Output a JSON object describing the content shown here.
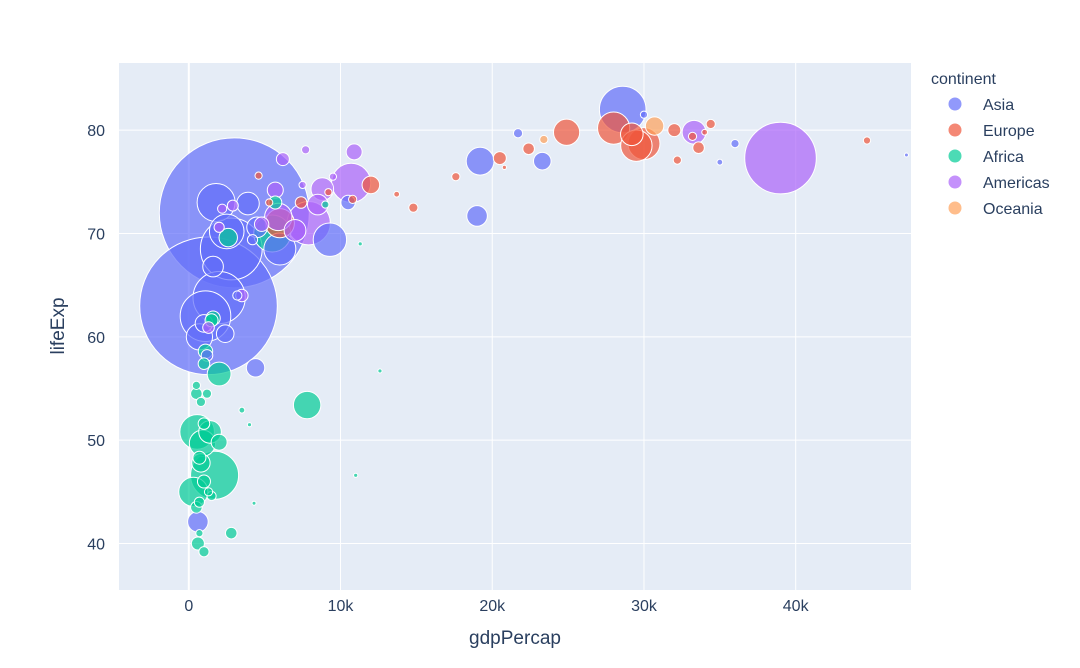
{
  "chart_data": {
    "type": "scatter",
    "subtype": "bubble",
    "title": "",
    "xlabel": "gdpPercap",
    "ylabel": "lifeExp",
    "xlim": [
      -4600,
      47600
    ],
    "ylim": [
      35.5,
      86.5
    ],
    "xticks": [
      0,
      10000,
      20000,
      30000,
      40000
    ],
    "xtick_labels": [
      "0",
      "10k",
      "20k",
      "30k",
      "40k"
    ],
    "yticks": [
      40,
      50,
      60,
      70,
      80
    ],
    "ytick_labels": [
      "40",
      "50",
      "60",
      "70",
      "80"
    ],
    "grid": true,
    "plot_bgcolor": "#e5ecf6",
    "legend": {
      "title": "continent",
      "placement": "right",
      "entries": [
        "Asia",
        "Europe",
        "Africa",
        "Americas",
        "Oceania"
      ]
    },
    "colors": {
      "Asia": "#636efa",
      "Europe": "#ef553b",
      "Africa": "#00cc96",
      "Americas": "#ab63fa",
      "Oceania": "#ffa15a"
    },
    "size_unit": "population (millions)",
    "series": [
      {
        "name": "Asia",
        "points": [
          {
            "x": 3000,
            "y": 72.0,
            "size": 1318
          },
          {
            "x": 1300,
            "y": 63.0,
            "size": 1110
          },
          {
            "x": 2800,
            "y": 68.5,
            "size": 224
          },
          {
            "x": 28600,
            "y": 82.0,
            "size": 127
          },
          {
            "x": 1800,
            "y": 73.0,
            "size": 85
          },
          {
            "x": 2000,
            "y": 63.8,
            "size": 160
          },
          {
            "x": 1100,
            "y": 62.0,
            "size": 150
          },
          {
            "x": 2500,
            "y": 70.2,
            "size": 70
          },
          {
            "x": 9300,
            "y": 69.4,
            "size": 65
          },
          {
            "x": 6000,
            "y": 68.5,
            "size": 60
          },
          {
            "x": 19200,
            "y": 77.0,
            "size": 45
          },
          {
            "x": 700,
            "y": 60.0,
            "size": 40
          },
          {
            "x": 3900,
            "y": 72.9,
            "size": 30
          },
          {
            "x": 4500,
            "y": 70.6,
            "size": 25
          },
          {
            "x": 1600,
            "y": 66.8,
            "size": 25
          },
          {
            "x": 4400,
            "y": 57.0,
            "size": 20
          },
          {
            "x": 19000,
            "y": 71.7,
            "size": 25
          },
          {
            "x": 23300,
            "y": 77.0,
            "size": 18
          },
          {
            "x": 2400,
            "y": 60.3,
            "size": 18
          },
          {
            "x": 1000,
            "y": 61.3,
            "size": 18
          },
          {
            "x": 600,
            "y": 42.1,
            "size": 25
          },
          {
            "x": 10500,
            "y": 73.0,
            "size": 12
          },
          {
            "x": 1200,
            "y": 58.2,
            "size": 8
          },
          {
            "x": 21700,
            "y": 79.7,
            "size": 5
          },
          {
            "x": 36000,
            "y": 78.7,
            "size": 4
          },
          {
            "x": 30000,
            "y": 81.5,
            "size": 3
          },
          {
            "x": 35000,
            "y": 76.9,
            "size": 2
          },
          {
            "x": 47300,
            "y": 77.6,
            "size": 0.7
          },
          {
            "x": 4200,
            "y": 69.4,
            "size": 6
          },
          {
            "x": 3200,
            "y": 64.0,
            "size": 5
          }
        ]
      },
      {
        "name": "Europe",
        "points": [
          {
            "x": 28000,
            "y": 80.2,
            "size": 61
          },
          {
            "x": 30000,
            "y": 78.7,
            "size": 60
          },
          {
            "x": 29500,
            "y": 78.5,
            "size": 58
          },
          {
            "x": 24900,
            "y": 79.8,
            "size": 40
          },
          {
            "x": 29200,
            "y": 79.6,
            "size": 30
          },
          {
            "x": 6000,
            "y": 71.0,
            "size": 50
          },
          {
            "x": 12000,
            "y": 74.7,
            "size": 18
          },
          {
            "x": 32000,
            "y": 80.0,
            "size": 10
          },
          {
            "x": 14800,
            "y": 72.5,
            "size": 5
          },
          {
            "x": 20500,
            "y": 77.3,
            "size": 10
          },
          {
            "x": 22400,
            "y": 78.2,
            "size": 8
          },
          {
            "x": 33600,
            "y": 78.3,
            "size": 8
          },
          {
            "x": 34400,
            "y": 80.6,
            "size": 5
          },
          {
            "x": 7400,
            "y": 73.0,
            "size": 8
          },
          {
            "x": 9200,
            "y": 74.0,
            "size": 3
          },
          {
            "x": 17600,
            "y": 75.5,
            "size": 4
          },
          {
            "x": 10800,
            "y": 73.3,
            "size": 4
          },
          {
            "x": 13700,
            "y": 73.8,
            "size": 2
          },
          {
            "x": 33200,
            "y": 79.4,
            "size": 4
          },
          {
            "x": 32200,
            "y": 77.1,
            "size": 4
          },
          {
            "x": 44700,
            "y": 79.0,
            "size": 3
          },
          {
            "x": 34000,
            "y": 79.8,
            "size": 2
          },
          {
            "x": 5300,
            "y": 73.0,
            "size": 3
          },
          {
            "x": 4600,
            "y": 75.6,
            "size": 3
          },
          {
            "x": 20800,
            "y": 76.4,
            "size": 1
          }
        ]
      },
      {
        "name": "Africa",
        "points": [
          {
            "x": 1700,
            "y": 46.6,
            "size": 135
          },
          {
            "x": 2600,
            "y": 69.6,
            "size": 20
          },
          {
            "x": 5500,
            "y": 70.0,
            "size": 80
          },
          {
            "x": 7800,
            "y": 53.4,
            "size": 44
          },
          {
            "x": 2000,
            "y": 56.4,
            "size": 33
          },
          {
            "x": 300,
            "y": 45.0,
            "size": 50
          },
          {
            "x": 550,
            "y": 50.8,
            "size": 70
          },
          {
            "x": 900,
            "y": 49.7,
            "size": 40
          },
          {
            "x": 1400,
            "y": 50.8,
            "size": 30
          },
          {
            "x": 1500,
            "y": 61.6,
            "size": 10
          },
          {
            "x": 800,
            "y": 47.8,
            "size": 20
          },
          {
            "x": 1100,
            "y": 58.6,
            "size": 12
          },
          {
            "x": 2000,
            "y": 49.8,
            "size": 15
          },
          {
            "x": 1000,
            "y": 46.0,
            "size": 10
          },
          {
            "x": 500,
            "y": 54.5,
            "size": 8
          },
          {
            "x": 1200,
            "y": 54.5,
            "size": 5
          },
          {
            "x": 800,
            "y": 53.7,
            "size": 5
          },
          {
            "x": 1600,
            "y": 61.8,
            "size": 12
          },
          {
            "x": 1000,
            "y": 57.4,
            "size": 8
          },
          {
            "x": 600,
            "y": 40.0,
            "size": 10
          },
          {
            "x": 1000,
            "y": 39.2,
            "size": 6
          },
          {
            "x": 2800,
            "y": 41.0,
            "size": 8
          },
          {
            "x": 700,
            "y": 48.3,
            "size": 10
          },
          {
            "x": 1000,
            "y": 51.6,
            "size": 8
          },
          {
            "x": 500,
            "y": 43.5,
            "size": 8
          },
          {
            "x": 700,
            "y": 44.0,
            "size": 6
          },
          {
            "x": 500,
            "y": 55.3,
            "size": 4
          },
          {
            "x": 5700,
            "y": 73.0,
            "size": 10
          },
          {
            "x": 3500,
            "y": 52.9,
            "size": 2
          },
          {
            "x": 4000,
            "y": 51.5,
            "size": 1
          },
          {
            "x": 12600,
            "y": 56.7,
            "size": 1
          },
          {
            "x": 11000,
            "y": 46.6,
            "size": 1
          },
          {
            "x": 4300,
            "y": 43.9,
            "size": 0.5
          },
          {
            "x": 9000,
            "y": 72.8,
            "size": 3
          },
          {
            "x": 1300,
            "y": 45.0,
            "size": 4
          },
          {
            "x": 700,
            "y": 41.0,
            "size": 3
          },
          {
            "x": 1500,
            "y": 44.6,
            "size": 5
          },
          {
            "x": 11300,
            "y": 69.0,
            "size": 1
          }
        ]
      },
      {
        "name": "Americas",
        "points": [
          {
            "x": 39000,
            "y": 77.3,
            "size": 300
          },
          {
            "x": 7900,
            "y": 71.0,
            "size": 110
          },
          {
            "x": 10700,
            "y": 74.9,
            "size": 90
          },
          {
            "x": 33300,
            "y": 79.8,
            "size": 33
          },
          {
            "x": 8800,
            "y": 74.3,
            "size": 30
          },
          {
            "x": 5900,
            "y": 71.6,
            "size": 44
          },
          {
            "x": 7000,
            "y": 70.3,
            "size": 28
          },
          {
            "x": 10900,
            "y": 77.9,
            "size": 15
          },
          {
            "x": 6200,
            "y": 77.2,
            "size": 10
          },
          {
            "x": 8500,
            "y": 72.8,
            "size": 25
          },
          {
            "x": 4800,
            "y": 70.9,
            "size": 12
          },
          {
            "x": 5700,
            "y": 74.2,
            "size": 15
          },
          {
            "x": 3500,
            "y": 64.0,
            "size": 9
          },
          {
            "x": 2900,
            "y": 72.7,
            "size": 7
          },
          {
            "x": 2000,
            "y": 70.6,
            "size": 6
          },
          {
            "x": 7700,
            "y": 78.1,
            "size": 4
          },
          {
            "x": 7500,
            "y": 74.7,
            "size": 3
          },
          {
            "x": 9500,
            "y": 75.5,
            "size": 3
          },
          {
            "x": 1300,
            "y": 60.9,
            "size": 8
          },
          {
            "x": 2200,
            "y": 72.4,
            "size": 5
          }
        ]
      },
      {
        "name": "Oceania",
        "points": [
          {
            "x": 30700,
            "y": 80.4,
            "size": 20
          },
          {
            "x": 23400,
            "y": 79.1,
            "size": 4
          }
        ]
      }
    ]
  }
}
